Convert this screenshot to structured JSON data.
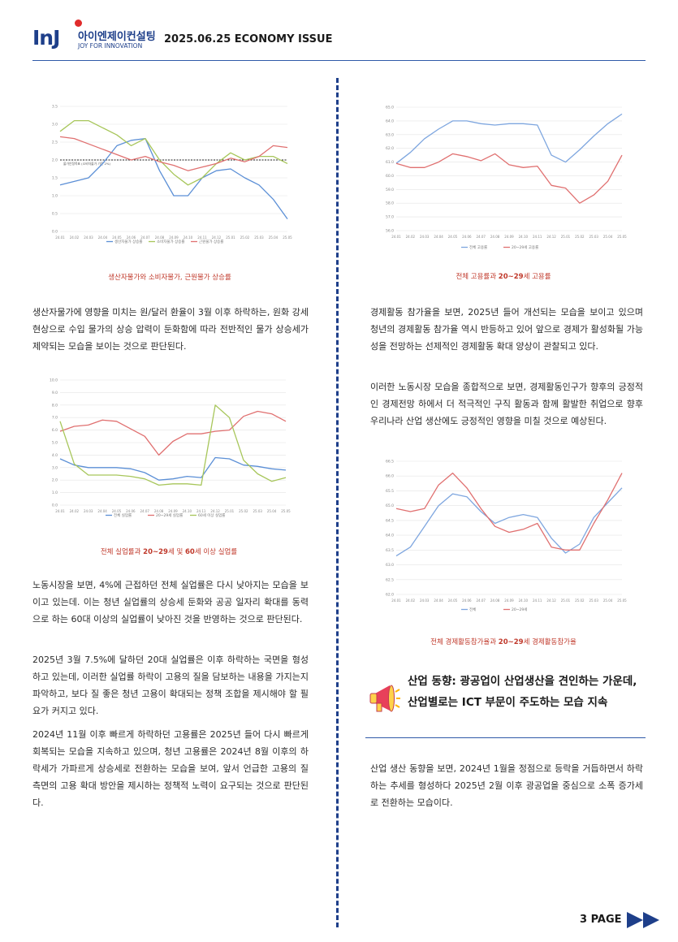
{
  "header": {
    "logo_mark": "InJ",
    "logo_korean": "아이엔제이컨설팅",
    "logo_english": "JOY FOR INNOVATION",
    "issue_title": "2025.06.25 ECONOMY ISSUE"
  },
  "colors": {
    "accent": "#1e3f8a",
    "caption": "#c0392b",
    "rule": "#2f5aa8"
  },
  "chart_data": [
    {
      "type": "line",
      "title": "생산자물가와 소비자물가, 근원물가 상승률",
      "ylim": [
        0.0,
        3.5
      ],
      "yticks": [
        "3.5",
        "3.0",
        "2.5",
        "2.0",
        "1.5",
        "1.0",
        "0.5",
        "0.0"
      ],
      "categories": [
        "24.01",
        "24.02",
        "24.03",
        "24.04",
        "24.05",
        "24.06",
        "24.07",
        "24.08",
        "24.09",
        "24.10",
        "24.11",
        "24.12",
        "25.01",
        "25.02",
        "25.03",
        "25.04",
        "25.05"
      ],
      "reference_line": {
        "value": 2.0,
        "label": "물가안정목표 (소비자물가 기준 2%)"
      },
      "series": [
        {
          "name": "생산자물가 상승률",
          "color": "#5b8fd6",
          "values": [
            1.3,
            1.4,
            1.5,
            1.9,
            2.4,
            2.55,
            2.6,
            1.7,
            1.0,
            1.0,
            1.5,
            1.7,
            1.75,
            1.5,
            1.3,
            0.9,
            0.35
          ]
        },
        {
          "name": "소비자물가 상승률",
          "color": "#a7c65a",
          "values": [
            2.8,
            3.1,
            3.1,
            2.9,
            2.7,
            2.4,
            2.6,
            2.0,
            1.6,
            1.3,
            1.5,
            1.9,
            2.2,
            2.0,
            2.1,
            2.1,
            1.9
          ]
        },
        {
          "name": "근원물가 상승률",
          "color": "#e07070",
          "values": [
            2.65,
            2.6,
            2.45,
            2.3,
            2.15,
            2.0,
            2.1,
            1.95,
            1.85,
            1.7,
            1.8,
            1.9,
            2.05,
            1.95,
            2.1,
            2.4,
            2.35
          ]
        }
      ]
    },
    {
      "type": "line",
      "title": "전체 실업률과 20~29세 및 60세 이상 실업률",
      "ylim": [
        0.0,
        10.0
      ],
      "yticks": [
        "10.0",
        "9.0",
        "8.0",
        "7.0",
        "6.0",
        "5.0",
        "4.0",
        "3.0",
        "2.0",
        "1.0",
        "0.0"
      ],
      "categories": [
        "24.01",
        "24.02",
        "24.03",
        "24.04",
        "24.05",
        "24.06",
        "24.07",
        "24.08",
        "24.09",
        "24.10",
        "24.11",
        "24.12",
        "25.01",
        "25.02",
        "25.03",
        "25.04",
        "25.05"
      ],
      "series": [
        {
          "name": "전체 실업률",
          "color": "#5b8fd6",
          "values": [
            3.7,
            3.2,
            3.0,
            3.0,
            3.0,
            2.9,
            2.6,
            2.0,
            2.1,
            2.3,
            2.2,
            3.8,
            3.7,
            3.2,
            3.1,
            2.9,
            2.8
          ]
        },
        {
          "name": "20~29세 실업률",
          "color": "#e07070",
          "values": [
            5.9,
            6.3,
            6.4,
            6.8,
            6.7,
            6.1,
            5.5,
            4.0,
            5.1,
            5.7,
            5.7,
            5.9,
            6.0,
            7.1,
            7.5,
            7.3,
            6.7
          ]
        },
        {
          "name": "60세 이상 실업률",
          "color": "#a7c65a",
          "values": [
            6.7,
            3.3,
            2.4,
            2.4,
            2.4,
            2.3,
            2.1,
            1.6,
            1.7,
            1.7,
            1.6,
            8.0,
            7.0,
            3.6,
            2.5,
            1.9,
            2.2
          ]
        }
      ]
    },
    {
      "type": "line",
      "title": "전체 고용률과 20~29세 고용률",
      "ylim": [
        56.0,
        65.0
      ],
      "yticks": [
        "65.0",
        "64.0",
        "63.0",
        "62.0",
        "61.0",
        "60.0",
        "59.0",
        "58.0",
        "57.0",
        "56.0"
      ],
      "categories": [
        "24.01",
        "24.02",
        "24.03",
        "24.04",
        "24.05",
        "24.06",
        "24.07",
        "24.08",
        "24.09",
        "24.10",
        "24.11",
        "24.12",
        "25.01",
        "25.02",
        "25.03",
        "25.04",
        "25.05"
      ],
      "series": [
        {
          "name": "전체 고용률",
          "color": "#7ea6df",
          "values": [
            60.9,
            61.7,
            62.7,
            63.4,
            64.0,
            64.0,
            63.8,
            63.7,
            63.8,
            63.8,
            63.7,
            61.5,
            61.0,
            61.9,
            62.9,
            63.8,
            64.5
          ]
        },
        {
          "name": "20~29세 고용률",
          "color": "#e07070",
          "values": [
            60.9,
            60.6,
            60.6,
            61.0,
            61.6,
            61.4,
            61.1,
            61.6,
            60.8,
            60.6,
            60.7,
            59.3,
            59.1,
            58.0,
            58.6,
            59.6,
            61.5
          ]
        }
      ]
    },
    {
      "type": "line",
      "title": "전체 경제활동참가율과 20~29세 경제활동참가율",
      "ylim": [
        62.0,
        66.5
      ],
      "yticks": [
        "66.5",
        "66.0",
        "65.5",
        "65.0",
        "64.5",
        "64.0",
        "63.5",
        "63.0",
        "62.5",
        "62.0"
      ],
      "categories": [
        "24.01",
        "24.02",
        "24.03",
        "24.04",
        "24.05",
        "24.06",
        "24.07",
        "24.08",
        "24.09",
        "24.10",
        "24.11",
        "24.12",
        "25.01",
        "25.02",
        "25.03",
        "25.04",
        "25.05"
      ],
      "series": [
        {
          "name": "전체",
          "color": "#7ea6df",
          "values": [
            63.3,
            63.6,
            64.3,
            65.0,
            65.4,
            65.3,
            64.8,
            64.4,
            64.6,
            64.7,
            64.6,
            63.9,
            63.4,
            63.7,
            64.6,
            65.1,
            65.6
          ]
        },
        {
          "name": "20~29세",
          "color": "#e07070",
          "values": [
            64.9,
            64.8,
            64.9,
            65.7,
            66.1,
            65.6,
            64.9,
            64.3,
            64.1,
            64.2,
            64.4,
            63.6,
            63.5,
            63.5,
            64.4,
            65.2,
            66.1
          ]
        }
      ]
    }
  ],
  "captions": {
    "c1": "생산자물가와 소비자물가, 근원물가 상승률",
    "c2_a": "전체 실업률과 ",
    "c2_b": "20~29",
    "c2_c": "세 및 ",
    "c2_d": "60",
    "c2_e": "세 이상 실업률",
    "c3_a": "전체 고용률과 ",
    "c3_b": "20~29",
    "c3_c": "세 고용률",
    "c4_a": "전체 경제활동참가율과 ",
    "c4_b": "20~29",
    "c4_c": "세 경제활동참가율"
  },
  "left_paragraphs": {
    "p1": "생산자물가에 영향을 미치는 원/달러 환율이 3월 이후 하락하는, 원화 강세 현상으로 수입 물가의 상승 압력이 둔화함에 따라 전반적인 물가 상승세가 제약되는 모습을 보이는 것으로 판단된다.",
    "p2": "노동시장을 보면, 4%에 근접하던 전체 실업률은 다시 낮아지는 모습을 보이고 있는데. 이는 청년 실업률의 상승세 둔화와 공공 일자리 확대를 동력으로 하는 60대 이상의 실업률이 낮아진 것을 반영하는 것으로 판단된다.",
    "p3": "2025년 3월 7.5%에 달하던 20대 실업률은 이후 하락하는 국면을 형성하고 있는데, 이러한 실업률 하락이 고용의 질을 담보하는 내용을 가지는지 파악하고, 보다 질 좋은 청년 고용이 확대되는 정책 조합을 제시해야 할 필요가 커지고 있다.",
    "p4": "2024년 11월 이후 빠르게 하락하던 고용률은 2025년 들어 다시 빠르게 회복되는 모습을 지속하고 있으며, 청년 고용률은 2024년 8월 이후의 하락세가 가파르게 상승세로 전환하는 모습을 보여, 앞서 언급한 고용의 질 측면의 고용 확대 방안을 제시하는 정책적 노력이 요구되는 것으로 판단된다."
  },
  "right_paragraphs": {
    "p1": "경제활동 참가율을 보면, 2025년 들어 개선되는 모습을 보이고 있으며 청년의 경제활동 참가율 역시 반등하고 있어 앞으로 경제가 활성화될 가능성을 전망하는 선제적인 경제활동 확대 양상이 관찰되고 있다.",
    "p2": "이러한 노동시장 모습을 종합적으로 보면, 경제활동인구가 향후의 긍정적인 경제전망 하에서 더 적극적인 구직 활동과 함께 활발한 취업으로 향후 우리나라 산업 생산에도 긍정적인 영향을 미칠 것으로 예상된다.",
    "p3": "산업 생산 동향을 보면, 2024년 1월을 정점으로 등락을 거듭하면서 하락하는 추세를 형성하다 2025년 2월 이후 광공업을 중심으로 소폭 증가세로 전환하는 모습이다."
  },
  "section": {
    "title": "산업 동향: 광공업이 산업생산을 견인하는 가운데, 산업별로는 ICT 부문이 주도하는 모습 지속",
    "icon": "megaphone-icon"
  },
  "footer": {
    "page_label": "3 PAGE"
  }
}
